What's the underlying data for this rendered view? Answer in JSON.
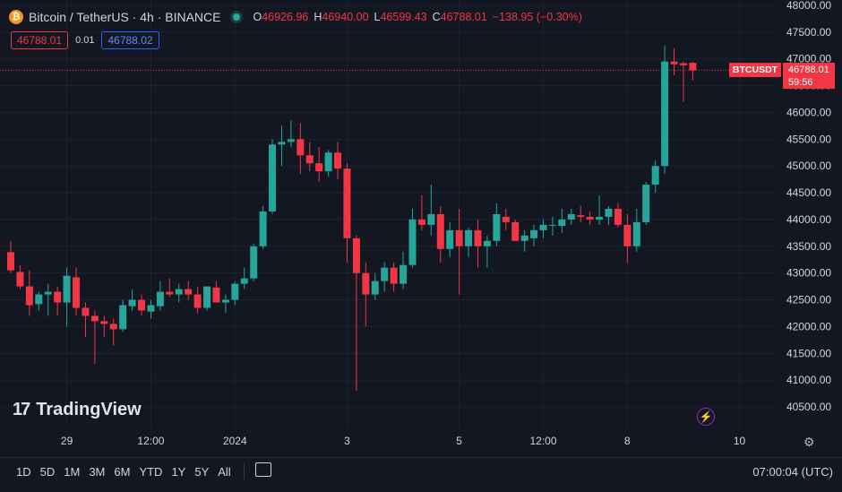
{
  "header": {
    "symbol": "Bitcoin / TetherUS · 4h · BINANCE",
    "coin_icon": "bitcoin-icon",
    "ohlc": {
      "o_label": "O",
      "o_value": "46926.96",
      "h_label": "H",
      "h_value": "46940.00",
      "l_label": "L",
      "l_value": "46599.43",
      "c_label": "C",
      "c_value": "46788.01",
      "change": "−138.95 (−0.30%)"
    }
  },
  "quote": {
    "sell": "46788.01",
    "spread": "0.01",
    "buy": "46788.02"
  },
  "price_line": {
    "symbol_label": "BTCUSDT",
    "price": "46788.01",
    "countdown": "59:56"
  },
  "branding": {
    "logo_text": "TradingView"
  },
  "bottom_bar": {
    "ranges": [
      "1D",
      "5D",
      "1M",
      "3M",
      "6M",
      "YTD",
      "1Y",
      "5Y",
      "All"
    ],
    "clock": "07:00:04 (UTC)"
  },
  "icons": {
    "live": "live-dot-icon",
    "bolt": "lightning-icon",
    "gear": "gear-icon",
    "calendar": "calendar-icon",
    "logo": "tradingview-logo-icon"
  },
  "colors": {
    "background": "#131722",
    "up": "#26a69a",
    "down": "#f23645",
    "grid": "#1e222d",
    "text": "#d1d4dc"
  },
  "chart_data": {
    "type": "candlestick",
    "interval": "4h",
    "ylim": [
      40500,
      48000
    ],
    "y_ticks": [
      40500,
      41000,
      41500,
      42000,
      42500,
      43000,
      43500,
      44000,
      44500,
      45000,
      45500,
      46000,
      46500,
      47000,
      47500,
      48000
    ],
    "y_tick_labels": [
      "40500.00",
      "41000.00",
      "41500.00",
      "42000.00",
      "42500.00",
      "43000.00",
      "43500.00",
      "44000.00",
      "44500.00",
      "45000.00",
      "45500.00",
      "46000.00",
      "46500.00",
      "47000.00",
      "47500.00",
      "48000.00"
    ],
    "x_tick_labels": [
      {
        "label": "29",
        "index": 6
      },
      {
        "label": "12:00",
        "index": 15
      },
      {
        "label": "2024",
        "index": 24
      },
      {
        "label": "3",
        "index": 36
      },
      {
        "label": "5",
        "index": 48
      },
      {
        "label": "12:00",
        "index": 57
      },
      {
        "label": "8",
        "index": 66
      },
      {
        "label": "10",
        "index": 78
      }
    ],
    "current_price": 46788.01,
    "candles": [
      [
        43390,
        43600,
        43000,
        43050
      ],
      [
        43020,
        43150,
        42700,
        42750
      ],
      [
        42750,
        43050,
        42200,
        42400
      ],
      [
        42420,
        42650,
        42300,
        42600
      ],
      [
        42600,
        42800,
        42200,
        42650
      ],
      [
        42650,
        42750,
        42200,
        42450
      ],
      [
        42450,
        43100,
        42000,
        42950
      ],
      [
        42920,
        43100,
        42200,
        42350
      ],
      [
        42350,
        42450,
        41800,
        42200
      ],
      [
        42200,
        42300,
        41300,
        42100
      ],
      [
        42100,
        42200,
        41800,
        42050
      ],
      [
        42050,
        42150,
        41650,
        41950
      ],
      [
        41950,
        42500,
        41900,
        42400
      ],
      [
        42380,
        42700,
        42300,
        42500
      ],
      [
        42500,
        42600,
        42200,
        42300
      ],
      [
        42280,
        42500,
        42150,
        42400
      ],
      [
        42380,
        42850,
        42300,
        42650
      ],
      [
        42650,
        42900,
        42550,
        42600
      ],
      [
        42600,
        42800,
        42450,
        42700
      ],
      [
        42700,
        42850,
        42500,
        42600
      ],
      [
        42600,
        42750,
        42250,
        42350
      ],
      [
        42350,
        42700,
        42300,
        42750
      ],
      [
        42730,
        42850,
        42500,
        42450
      ],
      [
        42450,
        42600,
        42250,
        42500
      ],
      [
        42500,
        42850,
        42400,
        42800
      ],
      [
        42800,
        43100,
        42700,
        42900
      ],
      [
        42900,
        43550,
        42850,
        43500
      ],
      [
        43500,
        44250,
        43450,
        44150
      ],
      [
        44150,
        45500,
        44100,
        45400
      ],
      [
        45400,
        45750,
        45000,
        45450
      ],
      [
        45450,
        45850,
        45350,
        45500
      ],
      [
        45500,
        45800,
        44850,
        45200
      ],
      [
        45200,
        45450,
        44900,
        45050
      ],
      [
        45050,
        45350,
        44700,
        44900
      ],
      [
        44900,
        45300,
        44800,
        45250
      ],
      [
        45250,
        45450,
        44750,
        44950
      ],
      [
        44950,
        45050,
        43200,
        43650
      ],
      [
        43650,
        43700,
        40800,
        43000
      ],
      [
        43000,
        43200,
        42000,
        42600
      ],
      [
        42600,
        43000,
        42500,
        42850
      ],
      [
        42850,
        43200,
        42650,
        43100
      ],
      [
        43100,
        43200,
        42650,
        42800
      ],
      [
        42800,
        43400,
        42700,
        43150
      ],
      [
        43150,
        44200,
        43100,
        44000
      ],
      [
        44000,
        44450,
        43800,
        43900
      ],
      [
        43900,
        44650,
        43700,
        44100
      ],
      [
        44100,
        44250,
        43200,
        43450
      ],
      [
        43450,
        43950,
        43300,
        43800
      ],
      [
        43800,
        44200,
        42600,
        43500
      ],
      [
        43500,
        43850,
        43300,
        43800
      ],
      [
        43800,
        44000,
        43100,
        43500
      ],
      [
        43500,
        43700,
        43100,
        43600
      ],
      [
        43600,
        44300,
        43500,
        44100
      ],
      [
        44050,
        44200,
        43800,
        43950
      ],
      [
        43950,
        44000,
        43600,
        43600
      ],
      [
        43600,
        43800,
        43400,
        43700
      ],
      [
        43650,
        43900,
        43500,
        43800
      ],
      [
        43800,
        44000,
        43650,
        43900
      ],
      [
        43900,
        44050,
        43700,
        43900
      ],
      [
        43880,
        44200,
        43750,
        44000
      ],
      [
        44000,
        44200,
        43900,
        44100
      ],
      [
        44080,
        44250,
        43950,
        44050
      ],
      [
        44050,
        44150,
        43900,
        44000
      ],
      [
        44000,
        44450,
        43900,
        44050
      ],
      [
        44050,
        44250,
        43900,
        44200
      ],
      [
        44200,
        44300,
        43850,
        43900
      ],
      [
        43900,
        44100,
        43200,
        43500
      ],
      [
        43500,
        44200,
        43400,
        43950
      ],
      [
        43950,
        44700,
        43900,
        44650
      ],
      [
        44650,
        45100,
        44500,
        45000
      ],
      [
        45000,
        47250,
        44850,
        46950
      ],
      [
        46950,
        47200,
        46700,
        46900
      ],
      [
        46920,
        46950,
        46200,
        46880
      ],
      [
        46926.96,
        46940,
        46599.43,
        46788.01
      ]
    ]
  }
}
